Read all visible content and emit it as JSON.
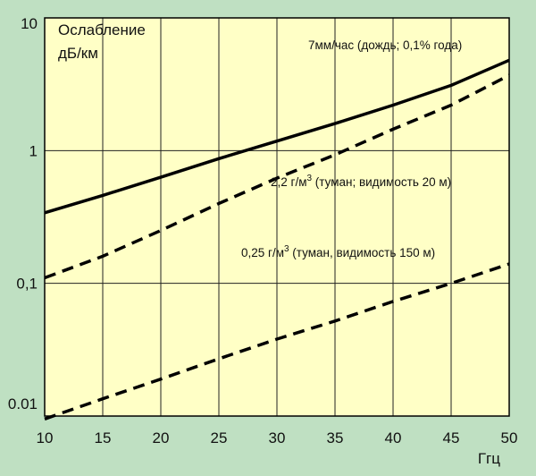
{
  "chart_data": {
    "type": "line",
    "title": "",
    "ylabel_lines": [
      "Ослабление",
      "дБ/км"
    ],
    "xlabel": "Ггц",
    "x_scale": "linear",
    "y_scale": "log",
    "xlim": [
      10,
      50
    ],
    "ylim": [
      0.01,
      10
    ],
    "x_ticks": [
      10,
      15,
      20,
      25,
      30,
      35,
      40,
      45,
      50
    ],
    "x_tick_labels": [
      "10",
      "15",
      "20",
      "25",
      "30",
      "35",
      "40",
      "45",
      "50"
    ],
    "y_ticks": [
      0.01,
      0.1,
      1,
      10
    ],
    "y_tick_labels": [
      "0.01",
      "0,1",
      "1",
      "10"
    ],
    "grid": true,
    "series": [
      {
        "name": "7мм/час (дождь; 0,1% года)",
        "name_parts": [
          "7мм/час (дождь; 0,1% года)"
        ],
        "line_style": "solid",
        "x": [
          10,
          15,
          20,
          25,
          30,
          35,
          40,
          45,
          50
        ],
        "y": [
          0.34,
          0.46,
          0.63,
          0.87,
          1.18,
          1.6,
          2.2,
          3.1,
          4.8
        ]
      },
      {
        "name": "2,2 г/м3 (туман; видимость 20 м)",
        "name_parts": [
          "2,2 г/м",
          "3",
          " (туман;  видимость 20 м)"
        ],
        "line_style": "dashed",
        "x": [
          10,
          15,
          20,
          25,
          30,
          35,
          40,
          45,
          50
        ],
        "y": [
          0.11,
          0.16,
          0.25,
          0.4,
          0.62,
          0.93,
          1.45,
          2.2,
          3.7
        ]
      },
      {
        "name": "0,25 г/м3 (туман, видимость 150 м)",
        "name_parts": [
          "0,25 г/м",
          "3",
          "  (туман, видимость 150 м)"
        ],
        "line_style": "dashed",
        "x": [
          10,
          15,
          20,
          25,
          30,
          35,
          40,
          45,
          50
        ],
        "y": [
          0.0095,
          0.0135,
          0.019,
          0.027,
          0.038,
          0.052,
          0.073,
          0.1,
          0.14
        ]
      }
    ],
    "colors": {
      "background": "#bfe0c2",
      "plot_area": "#ffffc6",
      "grid": "#222222",
      "line": "#000000"
    }
  }
}
